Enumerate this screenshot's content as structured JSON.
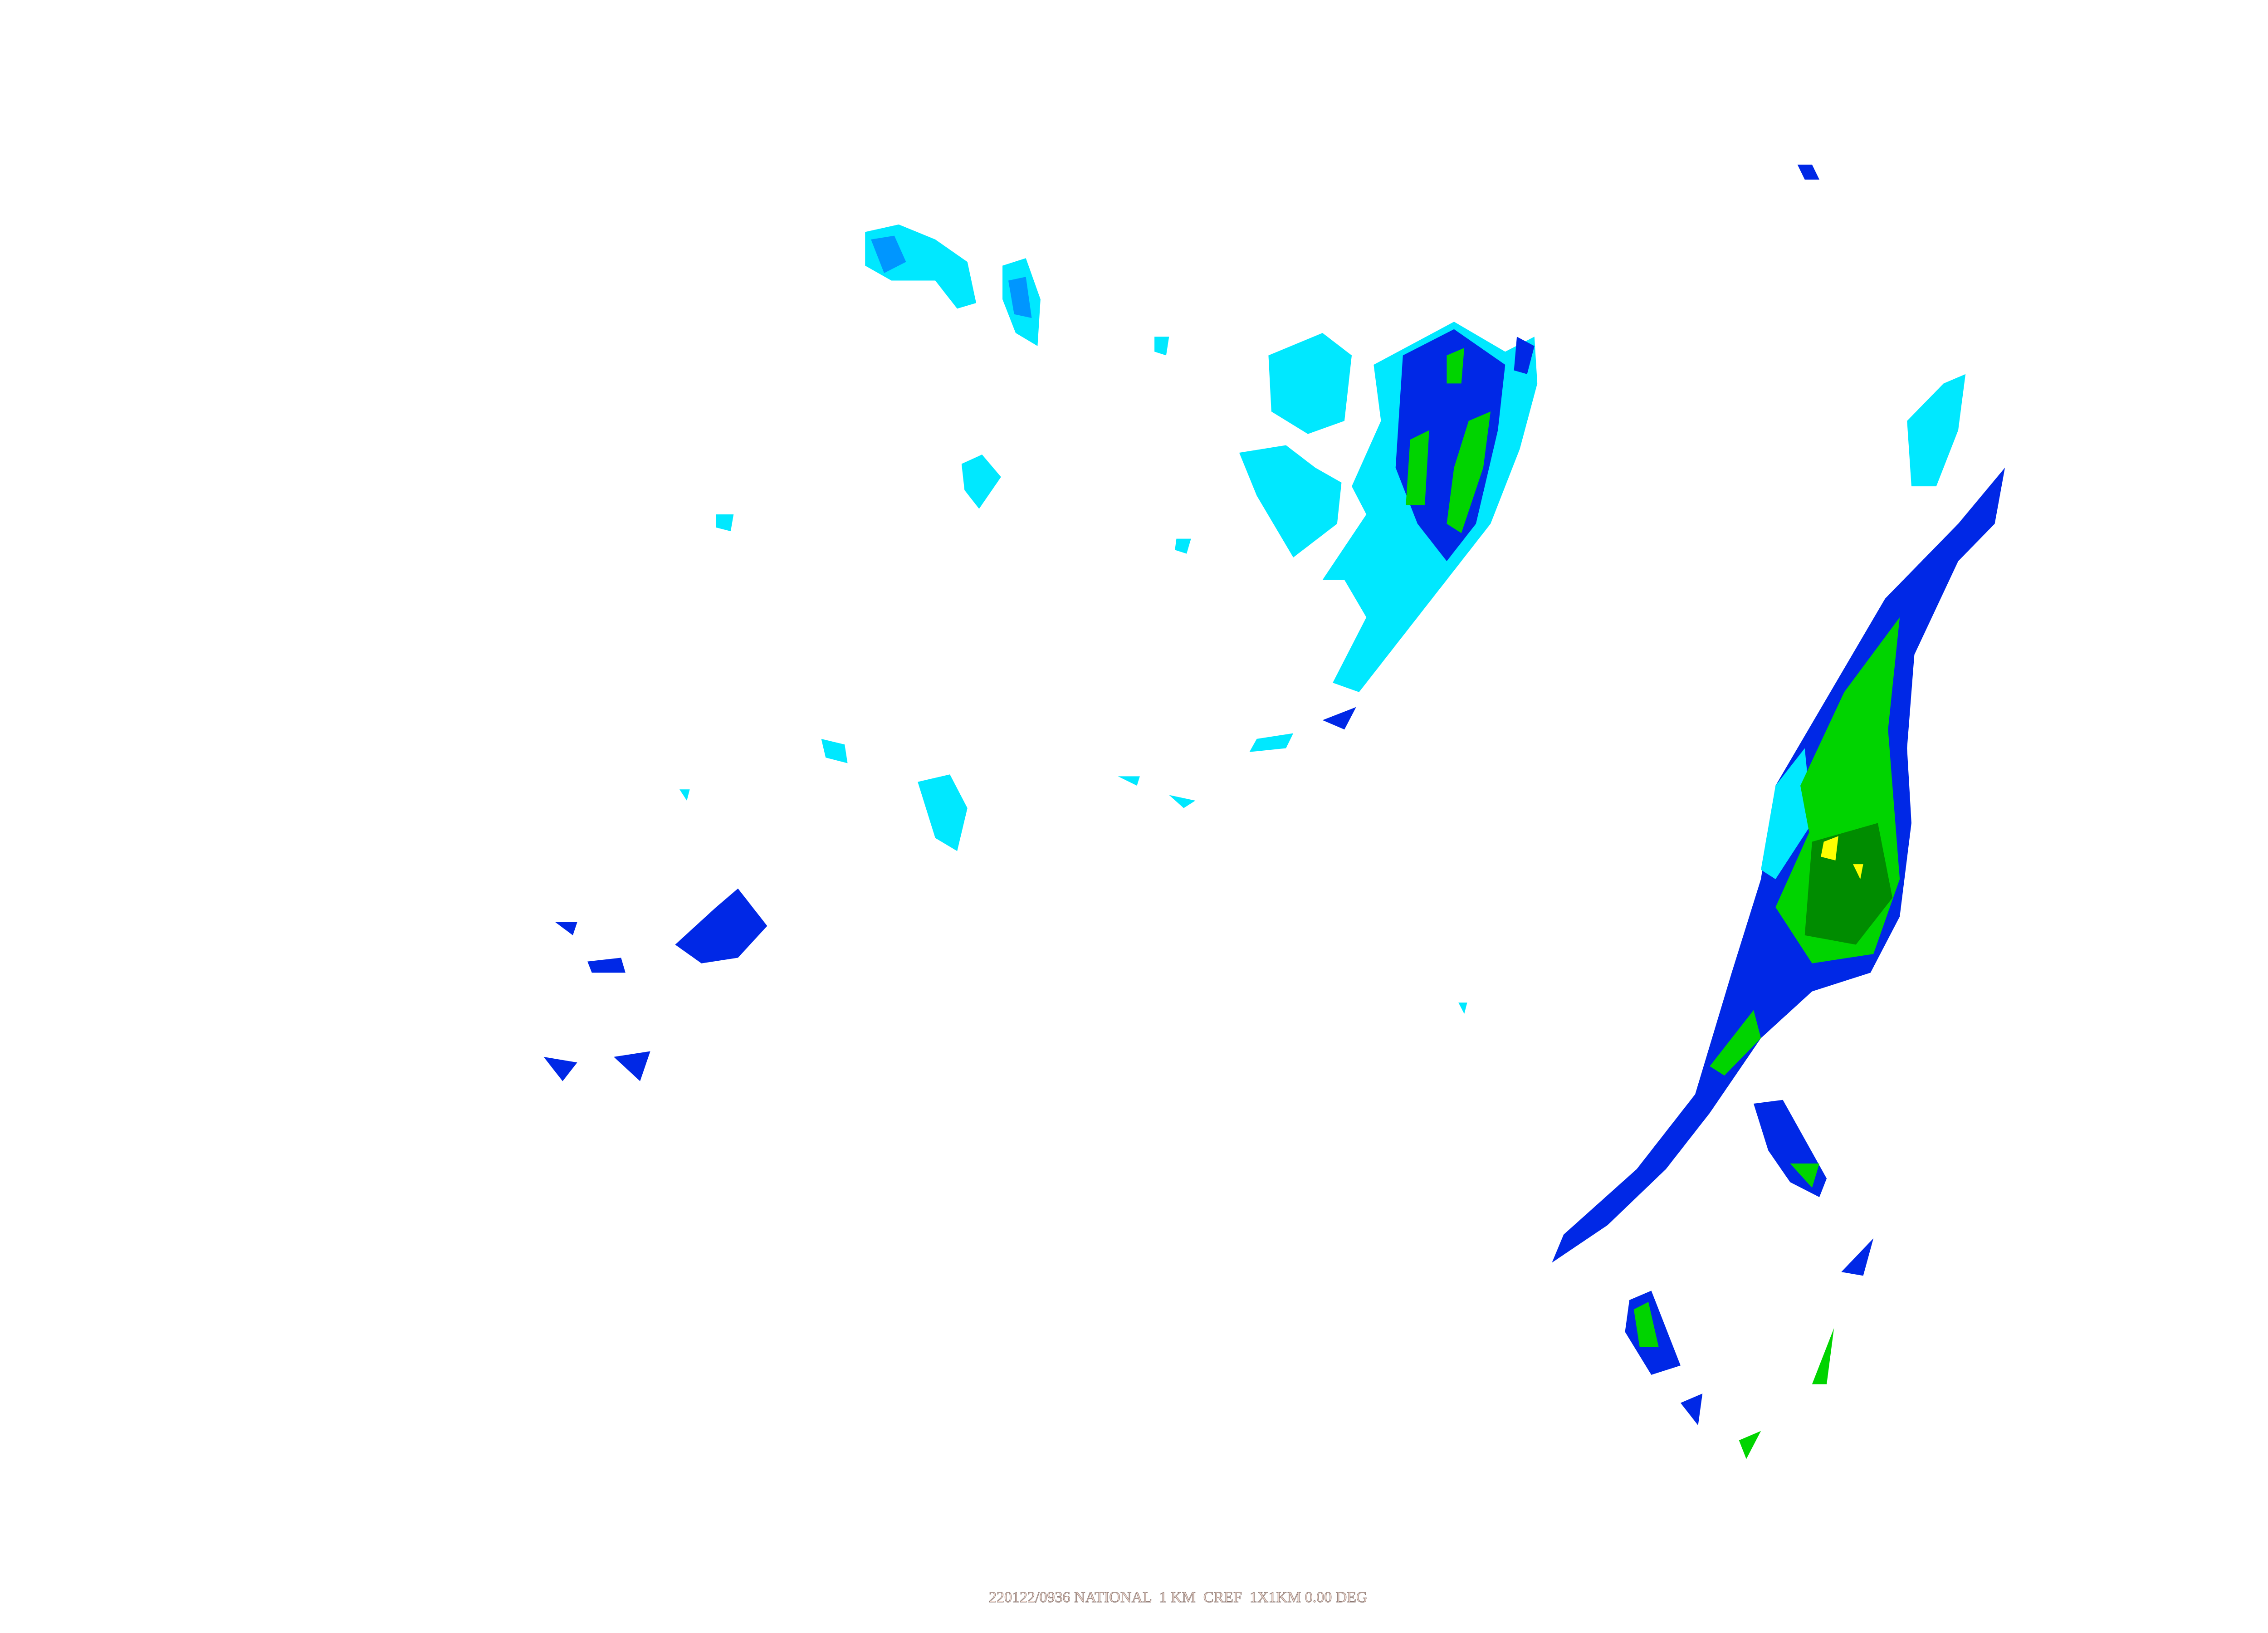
{
  "map": {
    "caption": "220122/0936 NATIONAL  1 KM  CREF  1X1KM 0.00 DEG",
    "background": "#ffffff",
    "reflectivity_colors": {
      "light": "#00e8ff",
      "moderate_light": "#0096ff",
      "moderate": "#0028e6",
      "heavy": "#00d400",
      "dark_green": "#008c00",
      "very_heavy": "#ffff00"
    }
  }
}
